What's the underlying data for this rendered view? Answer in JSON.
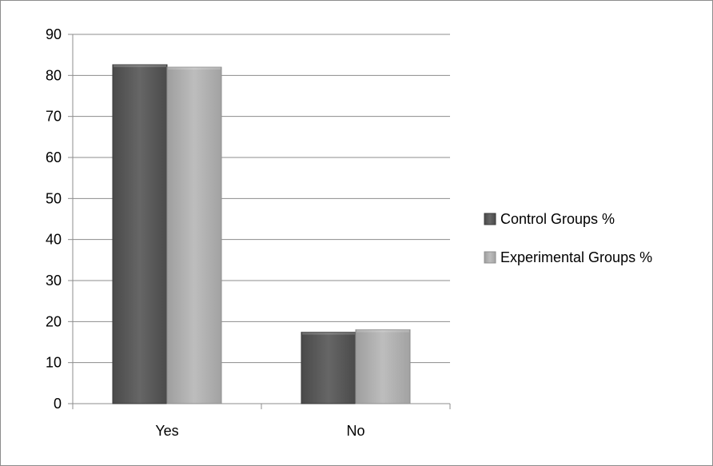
{
  "chart_data": {
    "type": "bar",
    "title": "",
    "xlabel": "",
    "ylabel": "",
    "categories": [
      "Yes",
      "No"
    ],
    "series": [
      {
        "name": "Control Groups %",
        "values": [
          82.6,
          17.4
        ],
        "color": "#5f5f5f"
      },
      {
        "name": "Experimental Groups %",
        "values": [
          82.0,
          18.0
        ],
        "color": "#b5b5b5"
      }
    ],
    "ylim": [
      0,
      90
    ],
    "yticks": [
      0,
      10,
      20,
      30,
      40,
      50,
      60,
      70,
      80,
      90
    ],
    "grid": true,
    "legend_position": "right"
  }
}
